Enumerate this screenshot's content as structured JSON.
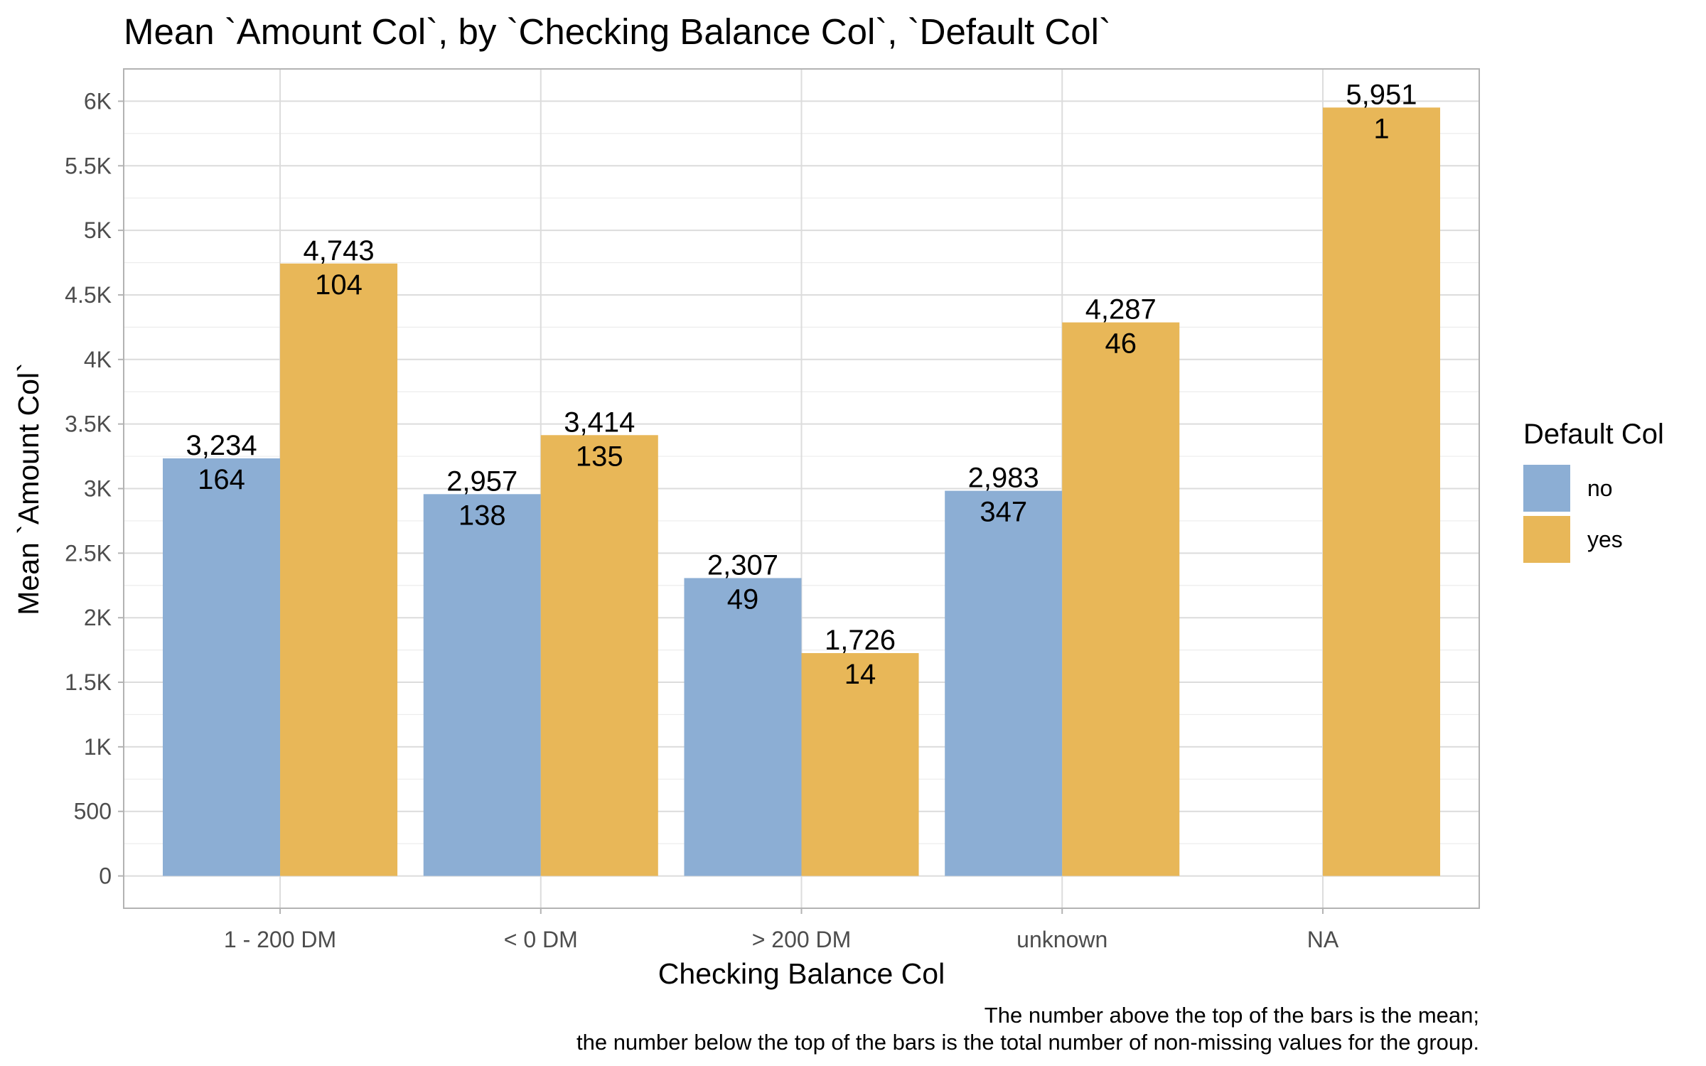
{
  "chart_data": {
    "type": "bar",
    "title": "Mean `Amount Col`, by `Checking Balance Col`, `Default Col`",
    "xlabel": "Checking Balance Col",
    "ylabel": "Mean `Amount Col`",
    "categories": [
      "1 - 200 DM",
      "< 0 DM",
      "> 200 DM",
      "unknown",
      "NA"
    ],
    "ylim": [
      -250,
      6250
    ],
    "yticks": [
      0,
      500,
      1000,
      1500,
      2000,
      2500,
      3000,
      3500,
      4000,
      4500,
      5000,
      5500,
      6000
    ],
    "ytick_labels": [
      "0",
      "500",
      "1K",
      "1.5K",
      "2K",
      "2.5K",
      "3K",
      "3.5K",
      "4K",
      "4.5K",
      "5K",
      "5.5K",
      "6K"
    ],
    "grid": true,
    "legend": {
      "title": "Default Col",
      "position": "right"
    },
    "series": [
      {
        "name": "no",
        "color": "#8caed4",
        "values": [
          3234,
          2957,
          2307,
          2983,
          null
        ],
        "mean_labels": [
          "3,234",
          "2,957",
          "2,307",
          "2,983",
          null
        ],
        "counts": [
          "164",
          "138",
          "49",
          "347",
          null
        ]
      },
      {
        "name": "yes",
        "color": "#e8b758",
        "values": [
          4743,
          3414,
          1726,
          4287,
          5951
        ],
        "mean_labels": [
          "4,743",
          "3,414",
          "1,726",
          "4,287",
          "5,951"
        ],
        "counts": [
          "104",
          "135",
          "14",
          "46",
          "1"
        ]
      }
    ],
    "caption": [
      "The number above the top of the bars is the mean;",
      "the number below the top of the bars is the total number of non-missing values for the group."
    ]
  }
}
